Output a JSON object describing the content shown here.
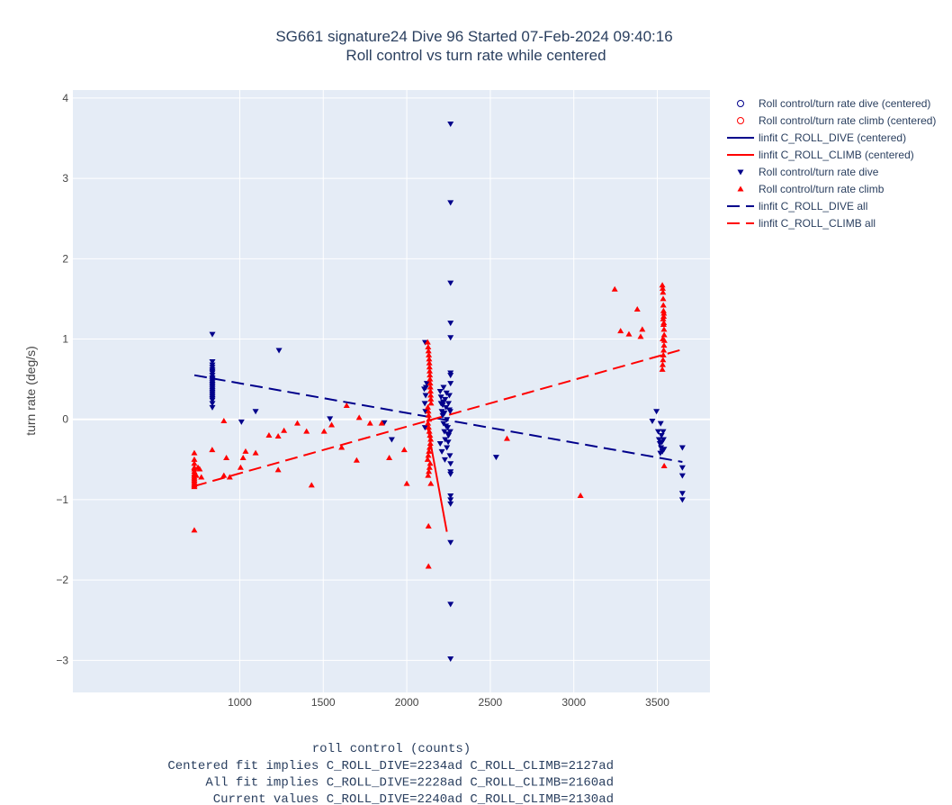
{
  "chart_data": {
    "type": "scatter",
    "title": "SG661 signature24 Dive 96 Started 07-Feb-2024 09:40:16",
    "subtitle": "Roll control vs turn rate while centered",
    "xlabel": "roll control (counts)",
    "ylabel": "turn rate (deg/s)",
    "xlim": [
      1,
      3815
    ],
    "ylim": [
      -3.4,
      4.1
    ],
    "x_ticks": [
      1000,
      1500,
      2000,
      2500,
      3000,
      3500
    ],
    "y_ticks": [
      -3,
      -2,
      -1,
      0,
      1,
      2,
      3,
      4
    ],
    "grid": true,
    "legend_position": "top-right outside",
    "background": "#e5ecf6",
    "colors": {
      "dive": "#00008b",
      "climb": "#ff0000"
    },
    "footer_lines": [
      "Centered fit implies C_ROLL_DIVE=2234ad C_ROLL_CLIMB=2127ad",
      "All fit implies C_ROLL_DIVE=2228ad C_ROLL_CLIMB=2160ad",
      "Current values C_ROLL_DIVE=2240ad C_ROLL_CLIMB=2130ad"
    ],
    "series": [
      {
        "name": "Roll control/turn rate dive (centered)",
        "mode": "markers",
        "marker": "circle-open",
        "color": "#00008b",
        "x": [],
        "y": []
      },
      {
        "name": "Roll control/turn rate climb (centered)",
        "mode": "markers",
        "marker": "circle-open",
        "color": "#ff0000",
        "x": [],
        "y": []
      },
      {
        "name": "linfit C_ROLL_DIVE (centered)",
        "mode": "line",
        "dash": "solid",
        "color": "#00008b",
        "x": [],
        "y": []
      },
      {
        "name": "linfit C_ROLL_CLIMB (centered)",
        "mode": "line",
        "dash": "solid",
        "color": "#ff0000",
        "x": [
          2125,
          2240
        ],
        "y": [
          -0.1,
          -1.4
        ]
      },
      {
        "name": "Roll control/turn rate dive",
        "mode": "markers",
        "marker": "triangle-down",
        "color": "#00008b",
        "x": [
          836,
          836,
          836,
          836,
          836,
          836,
          836,
          836,
          836,
          836,
          836,
          836,
          836,
          836,
          836,
          836,
          836,
          836,
          836,
          836,
          836,
          836,
          836,
          836,
          836,
          1235,
          1010,
          1095,
          1540,
          1865,
          1910,
          2110,
          2105,
          2108,
          2112,
          2115,
          2109,
          2113,
          2120,
          2200,
          2205,
          2210,
          2215,
          2220,
          2225,
          2230,
          2235,
          2240,
          2245,
          2250,
          2255,
          2260,
          2200,
          2210,
          2220,
          2230,
          2240,
          2250,
          2260,
          2205,
          2215,
          2225,
          2235,
          2245,
          2255,
          2228,
          2238,
          2248,
          2218,
          2258,
          2262,
          2262,
          2262,
          2262,
          2262,
          2262,
          2262,
          2262,
          2262,
          2262,
          2262,
          2262,
          2262,
          2262,
          2262,
          2262,
          2262,
          2535,
          3470,
          3495,
          3505,
          3510,
          3515,
          3518,
          3520,
          3522,
          3525,
          3528,
          3530,
          3535,
          3537,
          3540,
          3650,
          3650,
          3650,
          3650,
          3650
        ],
        "y": [
          1.06,
          0.72,
          0.68,
          0.65,
          0.62,
          0.6,
          0.58,
          0.55,
          0.52,
          0.5,
          0.48,
          0.46,
          0.44,
          0.42,
          0.4,
          0.38,
          0.36,
          0.34,
          0.32,
          0.3,
          0.28,
          0.26,
          0.24,
          0.2,
          0.15,
          0.86,
          -0.03,
          0.1,
          0.01,
          -0.04,
          -0.25,
          0.96,
          0.38,
          0.2,
          0.1,
          0.4,
          -0.1,
          0.3,
          0.45,
          0.35,
          0.2,
          0.1,
          0.05,
          -0.05,
          -0.15,
          0.25,
          0.15,
          0.0,
          -0.1,
          -0.2,
          0.3,
          0.1,
          -0.3,
          -0.4,
          0.4,
          -0.25,
          -0.35,
          0.2,
          -0.15,
          0.28,
          0.18,
          0.08,
          -0.08,
          -0.18,
          0.12,
          -0.5,
          0.33,
          -0.28,
          0.22,
          -0.45,
          3.68,
          2.7,
          1.7,
          1.2,
          1.02,
          0.58,
          0.55,
          0.45,
          -0.55,
          -0.65,
          -0.68,
          -0.95,
          -1.0,
          -1.05,
          -1.53,
          -2.3,
          -2.98,
          -0.47,
          -0.02,
          0.1,
          -0.15,
          -0.25,
          -0.3,
          -0.42,
          -0.05,
          -0.35,
          -0.2,
          -0.28,
          -0.4,
          -0.15,
          -0.25,
          -0.37,
          -0.35,
          -0.6,
          -0.7,
          -0.92,
          -1.0
        ]
      },
      {
        "name": "Roll control/turn rate climb",
        "mode": "markers",
        "marker": "triangle-up",
        "color": "#ff0000",
        "x": [
          728,
          728,
          728,
          728,
          728,
          728,
          728,
          728,
          728,
          728,
          728,
          728,
          728,
          728,
          728,
          728,
          728,
          740,
          750,
          760,
          770,
          835,
          905,
          905,
          920,
          940,
          1005,
          1020,
          1035,
          1095,
          1175,
          1230,
          1230,
          1265,
          1345,
          1400,
          1430,
          1505,
          1550,
          1610,
          1640,
          1700,
          1715,
          1780,
          1850,
          1895,
          1985,
          2000,
          2125,
          2128,
          2130,
          2132,
          2134,
          2135,
          2136,
          2137,
          2138,
          2139,
          2140,
          2141,
          2142,
          2143,
          2144,
          2145,
          2126,
          2129,
          2131,
          2133,
          2127,
          2131,
          2135,
          2139,
          2143,
          2141,
          2137,
          2133,
          2129,
          2125,
          2140,
          2136,
          2132,
          2128,
          2144,
          2130,
          2130,
          2600,
          3040,
          3245,
          3280,
          3330,
          3380,
          3400,
          3410,
          3530,
          3532,
          3534,
          3535,
          3536,
          3537,
          3538,
          3539,
          3540,
          3541,
          3542,
          3540,
          3538,
          3536,
          3534,
          3532,
          3530,
          3533,
          3535,
          3537,
          3539,
          3541
        ],
        "y": [
          -0.42,
          -0.5,
          -0.55,
          -0.6,
          -0.62,
          -0.65,
          -0.68,
          -0.7,
          -0.72,
          -0.74,
          -0.76,
          -0.78,
          -0.8,
          -0.82,
          -0.82,
          -0.84,
          -1.38,
          -0.7,
          -0.6,
          -0.62,
          -0.72,
          -0.38,
          -0.02,
          -0.7,
          -0.48,
          -0.72,
          -0.6,
          -0.48,
          -0.4,
          -0.42,
          -0.2,
          -0.63,
          -0.21,
          -0.14,
          -0.05,
          -0.15,
          -0.82,
          -0.15,
          -0.07,
          -0.35,
          0.17,
          -0.51,
          0.02,
          -0.05,
          -0.05,
          -0.48,
          -0.38,
          -0.8,
          0.96,
          0.9,
          0.85,
          0.8,
          0.75,
          0.7,
          0.65,
          0.6,
          0.55,
          0.5,
          0.45,
          0.4,
          0.35,
          0.3,
          0.25,
          0.2,
          0.15,
          0.1,
          0.05,
          0.0,
          -0.05,
          -0.1,
          -0.15,
          -0.2,
          -0.25,
          -0.3,
          -0.35,
          -0.4,
          -0.45,
          -0.5,
          -0.55,
          -0.6,
          -0.65,
          -0.7,
          -0.8,
          -1.33,
          -1.83,
          -0.24,
          -0.95,
          1.62,
          1.1,
          1.06,
          1.37,
          1.03,
          1.12,
          1.67,
          1.63,
          1.58,
          1.5,
          1.42,
          1.35,
          1.28,
          1.2,
          1.12,
          1.05,
          0.98,
          0.92,
          0.86,
          0.8,
          0.74,
          0.68,
          0.62,
          1.0,
          1.25,
          1.18,
          1.32,
          -0.58
        ]
      },
      {
        "name": "linfit C_ROLL_DIVE all",
        "mode": "line",
        "dash": "dash",
        "color": "#00008b",
        "x": [
          728,
          3650
        ],
        "y": [
          0.55,
          -0.53
        ]
      },
      {
        "name": "linfit C_ROLL_CLIMB all",
        "mode": "line",
        "dash": "dash",
        "color": "#ff0000",
        "x": [
          728,
          3650
        ],
        "y": [
          -0.83,
          0.87
        ]
      }
    ]
  }
}
